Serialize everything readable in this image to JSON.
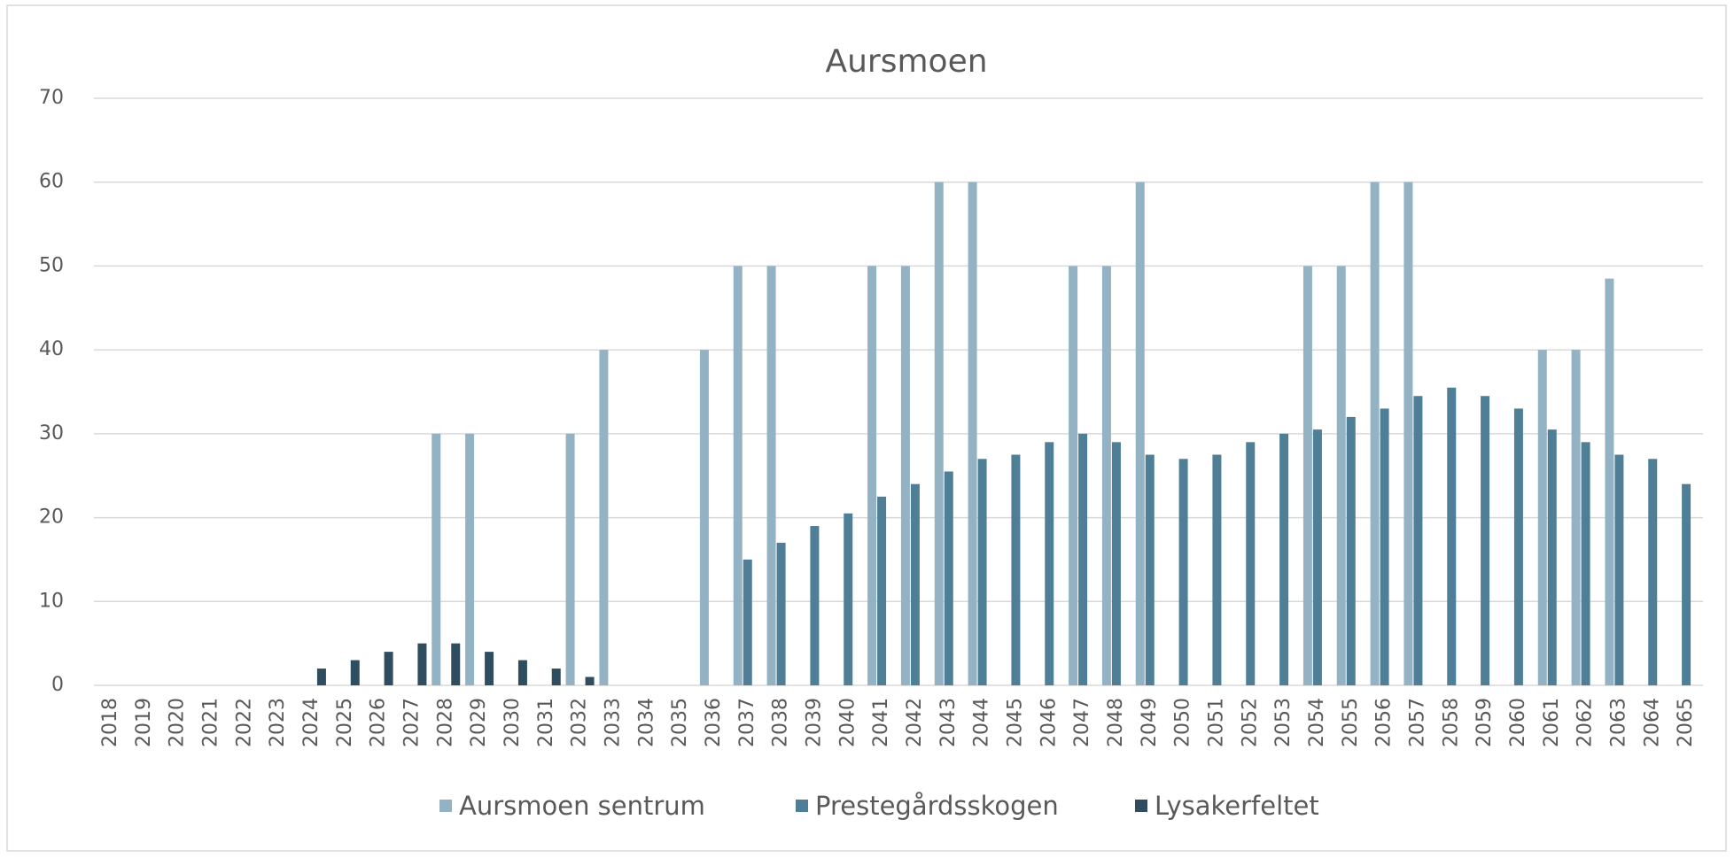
{
  "chart_data": {
    "type": "bar",
    "title": "Aursmoen",
    "categories": [
      "2018",
      "2019",
      "2020",
      "2021",
      "2022",
      "2023",
      "2024",
      "2025",
      "2026",
      "2027",
      "2028",
      "2029",
      "2030",
      "2031",
      "2032",
      "2033",
      "2034",
      "2035",
      "2036",
      "2037",
      "2038",
      "2039",
      "2040",
      "2041",
      "2042",
      "2043",
      "2044",
      "2045",
      "2046",
      "2047",
      "2048",
      "2049",
      "2050",
      "2051",
      "2052",
      "2053",
      "2054",
      "2055",
      "2056",
      "2057",
      "2058",
      "2059",
      "2060",
      "2061",
      "2062",
      "2063",
      "2064",
      "2065"
    ],
    "series": [
      {
        "name": "Aursmoen sentrum",
        "color": "#93b3c4",
        "values": [
          0,
          0,
          0,
          0,
          0,
          0,
          0,
          0,
          0,
          0,
          30,
          30,
          0,
          0,
          30,
          40,
          0,
          0,
          40,
          50,
          50,
          0,
          0,
          50,
          50,
          60,
          60,
          0,
          0,
          50,
          50,
          60,
          0,
          0,
          0,
          0,
          50,
          50,
          60,
          60,
          0,
          0,
          0,
          40,
          40,
          48.5,
          0,
          0
        ]
      },
      {
        "name": "Prestegårdsskogen",
        "color": "#4f7f96",
        "values": [
          0,
          0,
          0,
          0,
          0,
          0,
          0,
          0,
          0,
          0,
          0,
          0,
          0,
          0,
          0,
          0,
          0,
          0,
          0,
          15,
          17,
          19,
          20.5,
          22.5,
          24,
          25.5,
          27,
          27.5,
          29,
          30,
          29,
          27.5,
          27,
          27.5,
          29,
          30,
          30.5,
          32,
          33,
          34.5,
          35.5,
          34.5,
          33,
          30.5,
          29,
          27.5,
          27,
          24
        ]
      },
      {
        "name": "Lysakerfeltet",
        "color": "#2f4d5f",
        "values": [
          0,
          0,
          0,
          0,
          0,
          0,
          2,
          3,
          4,
          5,
          5,
          4,
          3,
          2,
          1,
          0,
          0,
          0,
          0,
          0,
          0,
          0,
          0,
          0,
          0,
          0,
          0,
          0,
          0,
          0,
          0,
          0,
          0,
          0,
          0,
          0,
          0,
          0,
          0,
          0,
          0,
          0,
          0,
          0,
          0,
          0,
          0,
          0
        ]
      }
    ],
    "ylim": [
      0,
      70
    ],
    "yticks": [
      0,
      10,
      20,
      30,
      40,
      50,
      60,
      70
    ],
    "grid": true,
    "legend": "bottom"
  }
}
